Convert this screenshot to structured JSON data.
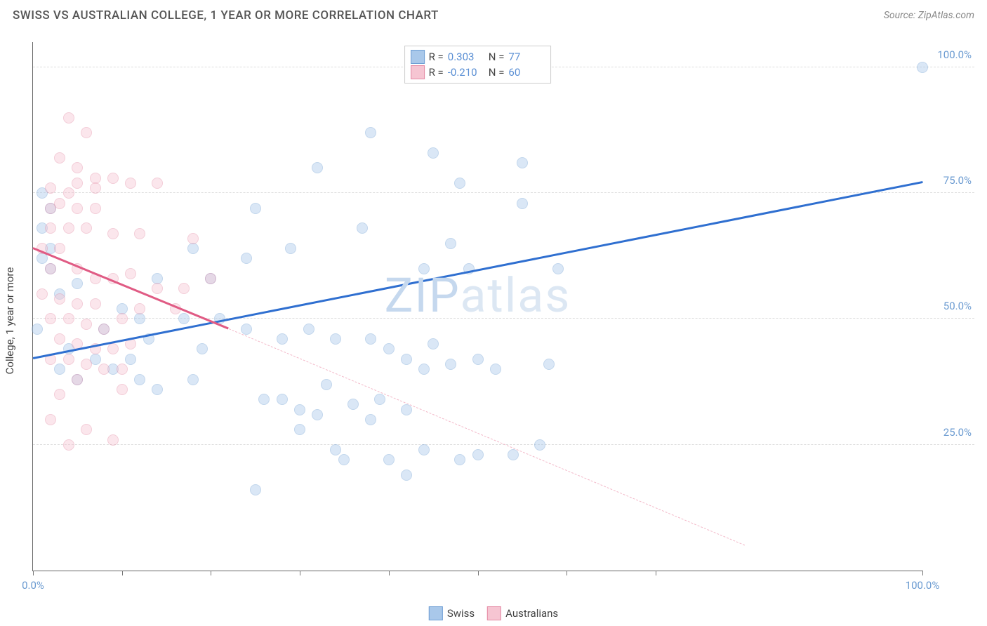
{
  "title": "SWISS VS AUSTRALIAN COLLEGE, 1 YEAR OR MORE CORRELATION CHART",
  "source": "Source: ZipAtlas.com",
  "ylabel": "College, 1 year or more",
  "watermark_a": "ZIP",
  "watermark_b": "atlas",
  "watermark_color_a": "#c5d8ee",
  "watermark_color_b": "#dce7f3",
  "chart": {
    "type": "scatter",
    "xlim": [
      0,
      100
    ],
    "ylim": [
      0,
      105
    ],
    "y_gridlines": [
      25,
      50,
      75,
      100
    ],
    "y_tick_labels": [
      "25.0%",
      "50.0%",
      "75.0%",
      "100.0%"
    ],
    "x_ticks": [
      0,
      10,
      20,
      30,
      40,
      50,
      60,
      70,
      100
    ],
    "x_tick_labels": {
      "0": "0.0%",
      "100": "100.0%"
    },
    "grid_color": "#dddddd",
    "axis_color": "#666666",
    "tick_label_color": "#6b9bd1",
    "background_color": "#ffffff",
    "marker_radius": 8,
    "marker_opacity": 0.42
  },
  "series": [
    {
      "name": "Swiss",
      "color_fill": "#a9c8ea",
      "color_stroke": "#6f9fd4",
      "points": [
        [
          100,
          100
        ],
        [
          51.7,
          101
        ],
        [
          55,
          81
        ],
        [
          45,
          83
        ],
        [
          38,
          87
        ],
        [
          48,
          77
        ],
        [
          32,
          80
        ],
        [
          55,
          73
        ],
        [
          25,
          72
        ],
        [
          37,
          68
        ],
        [
          29,
          64
        ],
        [
          18,
          64
        ],
        [
          24,
          62
        ],
        [
          47,
          65
        ],
        [
          49,
          60
        ],
        [
          44,
          60
        ],
        [
          59,
          60
        ],
        [
          14,
          58
        ],
        [
          20,
          58
        ],
        [
          1,
          62
        ],
        [
          2,
          64
        ],
        [
          1,
          68
        ],
        [
          2,
          72
        ],
        [
          1,
          75
        ],
        [
          2,
          60
        ],
        [
          3,
          55
        ],
        [
          5,
          57
        ],
        [
          10,
          52
        ],
        [
          12,
          50
        ],
        [
          17,
          50
        ],
        [
          21,
          50
        ],
        [
          24,
          48
        ],
        [
          8,
          48
        ],
        [
          0.5,
          48
        ],
        [
          13,
          46
        ],
        [
          19,
          44
        ],
        [
          28,
          46
        ],
        [
          31,
          48
        ],
        [
          34,
          46
        ],
        [
          38,
          46
        ],
        [
          40,
          44
        ],
        [
          45,
          45
        ],
        [
          4,
          44
        ],
        [
          7,
          42
        ],
        [
          11,
          42
        ],
        [
          3,
          40
        ],
        [
          5,
          38
        ],
        [
          12,
          38
        ],
        [
          9,
          40
        ],
        [
          50,
          42
        ],
        [
          52,
          40
        ],
        [
          47,
          41
        ],
        [
          58,
          41
        ],
        [
          42,
          42
        ],
        [
          44,
          40
        ],
        [
          28,
          34
        ],
        [
          30,
          32
        ],
        [
          32,
          31
        ],
        [
          33,
          37
        ],
        [
          36,
          33
        ],
        [
          38,
          30
        ],
        [
          39,
          34
        ],
        [
          42,
          32
        ],
        [
          30,
          28
        ],
        [
          26,
          34
        ],
        [
          34,
          24
        ],
        [
          35,
          22
        ],
        [
          40,
          22
        ],
        [
          44,
          24
        ],
        [
          48,
          22
        ],
        [
          50,
          23
        ],
        [
          25,
          16
        ],
        [
          42,
          19
        ],
        [
          14,
          36
        ],
        [
          18,
          38
        ],
        [
          57,
          25
        ],
        [
          54,
          23
        ]
      ],
      "trend": {
        "x1": 0,
        "y1": 42,
        "x2": 100,
        "y2": 77,
        "color": "#2f6fd0",
        "width": 2.5
      },
      "R": "0.303",
      "N": "77"
    },
    {
      "name": "Australians",
      "color_fill": "#f6c5d2",
      "color_stroke": "#e48aa4",
      "points": [
        [
          4,
          90
        ],
        [
          6,
          87
        ],
        [
          3,
          82
        ],
        [
          5,
          80
        ],
        [
          7,
          78
        ],
        [
          2,
          76
        ],
        [
          5,
          77
        ],
        [
          4,
          75
        ],
        [
          7,
          76
        ],
        [
          9,
          78
        ],
        [
          11,
          77
        ],
        [
          14,
          77
        ],
        [
          2,
          72
        ],
        [
          3,
          73
        ],
        [
          5,
          72
        ],
        [
          7,
          72
        ],
        [
          2,
          68
        ],
        [
          4,
          68
        ],
        [
          6,
          68
        ],
        [
          9,
          67
        ],
        [
          12,
          67
        ],
        [
          18,
          66
        ],
        [
          1,
          64
        ],
        [
          3,
          64
        ],
        [
          2,
          60
        ],
        [
          5,
          60
        ],
        [
          7,
          58
        ],
        [
          9,
          58
        ],
        [
          11,
          59
        ],
        [
          14,
          56
        ],
        [
          17,
          56
        ],
        [
          20,
          58
        ],
        [
          1,
          55
        ],
        [
          3,
          54
        ],
        [
          5,
          53
        ],
        [
          7,
          53
        ],
        [
          2,
          50
        ],
        [
          4,
          50
        ],
        [
          6,
          49
        ],
        [
          8,
          48
        ],
        [
          10,
          50
        ],
        [
          12,
          52
        ],
        [
          16,
          52
        ],
        [
          3,
          46
        ],
        [
          5,
          45
        ],
        [
          7,
          44
        ],
        [
          9,
          44
        ],
        [
          11,
          45
        ],
        [
          2,
          42
        ],
        [
          4,
          42
        ],
        [
          6,
          41
        ],
        [
          8,
          40
        ],
        [
          10,
          40
        ],
        [
          5,
          38
        ],
        [
          3,
          35
        ],
        [
          10,
          36
        ],
        [
          2,
          30
        ],
        [
          6,
          28
        ],
        [
          4,
          25
        ],
        [
          9,
          26
        ]
      ],
      "trend_solid": {
        "x1": 0,
        "y1": 64,
        "x2": 22,
        "y2": 48,
        "color": "#e05b84",
        "width": 2.5
      },
      "trend_dash": {
        "x1": 22,
        "y1": 48,
        "x2": 80,
        "y2": 5,
        "color": "#f3b9c9",
        "width": 1.5
      },
      "R": "-0.210",
      "N": "60"
    }
  ],
  "legend_bottom": [
    {
      "label": "Swiss",
      "fill": "#a9c8ea",
      "stroke": "#6f9fd4"
    },
    {
      "label": "Australians",
      "fill": "#f6c5d2",
      "stroke": "#e48aa4"
    }
  ],
  "legend_top_labels": {
    "R": "R",
    "N": "N",
    "eq": "="
  }
}
